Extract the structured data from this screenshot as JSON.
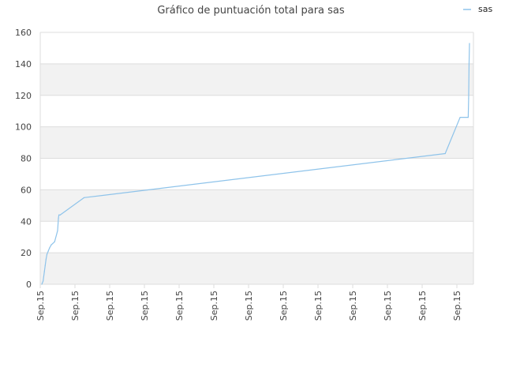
{
  "chart_data": {
    "type": "line",
    "title": "Gráfico de puntuación total para sas",
    "xlabel": "",
    "ylabel": "",
    "ylim": [
      0,
      160
    ],
    "yticks": [
      0,
      20,
      40,
      60,
      80,
      100,
      120,
      140,
      160
    ],
    "x_tick_labels": [
      "Sep.15",
      "Sep.15",
      "Sep.15",
      "Sep.15",
      "Sep.15",
      "Sep.15",
      "Sep.15",
      "Sep.15",
      "Sep.15",
      "Sep.15",
      "Sep.15",
      "Sep.15",
      "Sep.15"
    ],
    "grid": true,
    "legend_position": "top-right",
    "colors": {
      "series": "#8ec3ea",
      "band": "#f2f2f2",
      "axis": "#dddddd"
    },
    "series": [
      {
        "name": "sas",
        "x": [
          0,
          0.003,
          0.006,
          0.008,
          0.01,
          0.012,
          0.015,
          0.018,
          0.022,
          0.03,
          0.037,
          0.039,
          0.04,
          0.043,
          0.099,
          0.946,
          0.981,
          1.0,
          1.001,
          1.002,
          1.003
        ],
        "y": [
          0,
          2,
          8,
          12,
          16,
          19,
          21,
          23,
          25,
          27,
          34,
          42,
          44,
          44,
          55,
          83,
          106,
          106,
          118,
          140,
          153
        ]
      }
    ]
  }
}
